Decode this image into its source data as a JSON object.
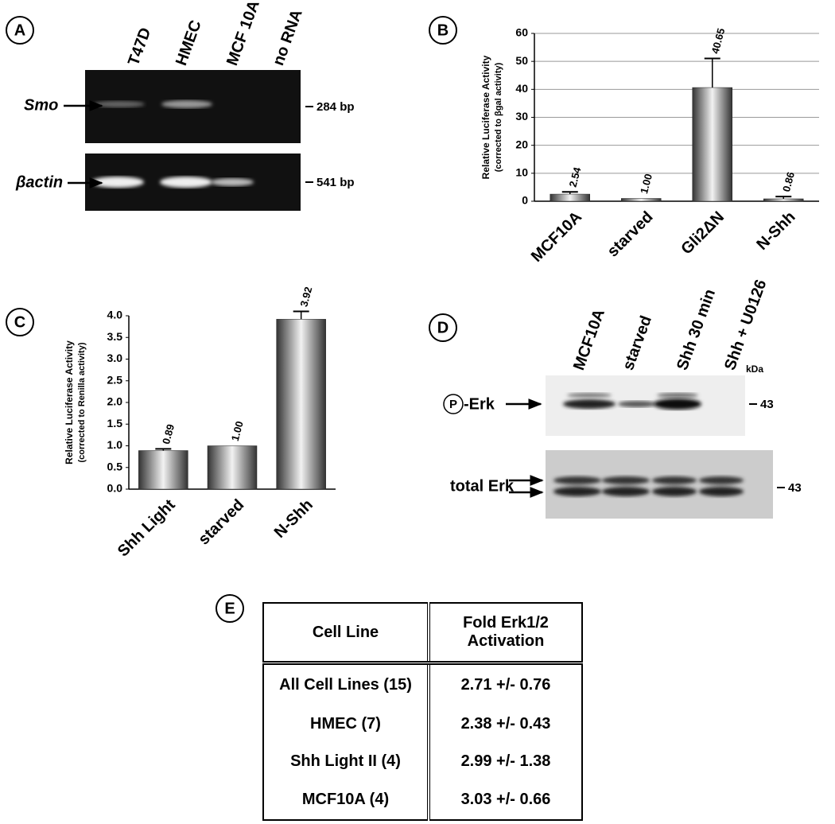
{
  "panel_a": {
    "letter": "A",
    "lanes": [
      "T47D",
      "HMEC",
      "MCF 10A",
      "no RNA"
    ],
    "genes": [
      "Smo",
      "βactin"
    ],
    "sizes": [
      "284 bp",
      "541 bp"
    ]
  },
  "chart_data": [
    {
      "type": "bar",
      "panel_label": "B",
      "y_label": "Relative Luciferase Activity",
      "y_sublabel": "(corrected to βgal activity)",
      "categories": [
        "MCF10A",
        "starved",
        "Gli2ΔN",
        "N-Shh"
      ],
      "values": [
        2.54,
        1,
        40.65,
        0.86
      ],
      "value_labels": [
        "2.54",
        "1.00",
        "40.65",
        "0.86"
      ],
      "errors": [
        0.8,
        null,
        10.4,
        0.8
      ],
      "ylim": [
        0,
        60
      ],
      "yticks": [
        0,
        10,
        20,
        30,
        40,
        50,
        60
      ],
      "grid": true
    },
    {
      "type": "bar",
      "panel_label": "C",
      "y_label": "Relative Luciferase Activity",
      "y_sublabel": "(corrected to Renilla activity)",
      "categories": [
        "Shh Light",
        "starved",
        "N-Shh"
      ],
      "values": [
        0.89,
        1,
        3.92
      ],
      "value_labels": [
        "0.89",
        "1.00",
        "3.92"
      ],
      "errors": [
        0.04,
        null,
        0.18
      ],
      "ylim": [
        0,
        4
      ],
      "yticks": [
        {
          "value": 0,
          "label": "0.0"
        },
        {
          "value": 0.5,
          "label": "0.5"
        },
        {
          "value": 1,
          "label": "1.0"
        },
        {
          "value": 1.5,
          "label": "1.5"
        },
        {
          "value": 2,
          "label": "2.0"
        },
        {
          "value": 2.5,
          "label": "2.5"
        },
        {
          "value": 3,
          "label": "3.0"
        },
        {
          "value": 3.5,
          "label": "3.5"
        },
        {
          "value": 4,
          "label": "4.0"
        }
      ],
      "grid": false
    }
  ],
  "panel_d": {
    "letter": "D",
    "lanes": [
      "MCF10A",
      "starved",
      "Shh 30 min",
      "Shh + U0126"
    ],
    "unit": "kDa",
    "phospho_mark": "P",
    "rows": [
      "-Erk",
      "total Erk"
    ],
    "sizes": [
      "43",
      "43"
    ]
  },
  "panel_e": {
    "letter": "E",
    "header": [
      "Cell Line",
      "Fold Erk1/2 Activation"
    ],
    "rows": [
      [
        "All Cell Lines (15)",
        "2.71 +/- 0.76"
      ],
      [
        "HMEC (7)",
        "2.38 +/- 0.43"
      ],
      [
        "Shh Light II (4)",
        "2.99 +/- 1.38"
      ],
      [
        "MCF10A (4)",
        "3.03 +/- 0.66"
      ]
    ]
  }
}
